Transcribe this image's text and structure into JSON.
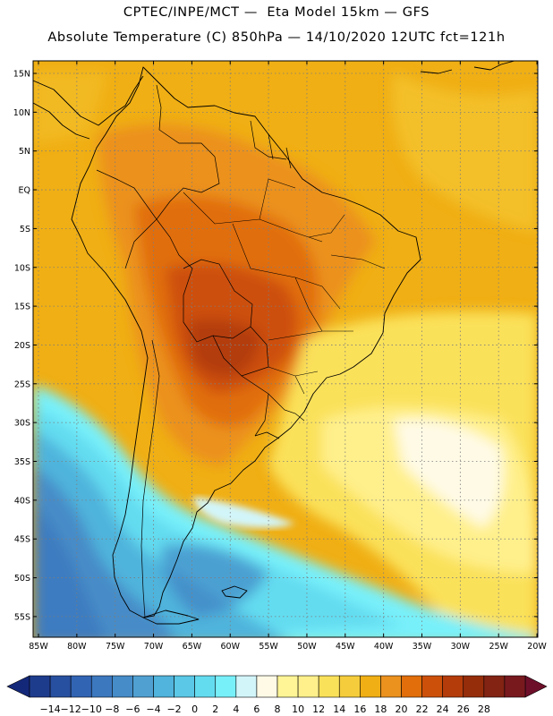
{
  "header": {
    "line1": "CPTEC/INPE/MCT —  Eta Model 15km — GFS",
    "line2": "Absolute Temperature (C) 850hPa — 14/10/2020 12UTC fct=121h"
  },
  "map": {
    "longitude_labels": [
      "85W",
      "80W",
      "75W",
      "70W",
      "65W",
      "60W",
      "55W",
      "50W",
      "45W",
      "40W",
      "35W",
      "30W",
      "25W",
      "20W"
    ],
    "latitude_labels": [
      "15N",
      "10N",
      "5N",
      "EQ",
      "5S",
      "10S",
      "15S",
      "20S",
      "25S",
      "30S",
      "35S",
      "40S",
      "45S",
      "50S",
      "55S"
    ]
  },
  "colorbar": {
    "labels": [
      "-14",
      "-12",
      "-10",
      "-8",
      "-6",
      "-4",
      "-2",
      "0",
      "2",
      "4",
      "6",
      "8",
      "10",
      "12",
      "14",
      "16",
      "18",
      "20",
      "22",
      "24",
      "26",
      "28"
    ],
    "colors": [
      "#1e3c8c",
      "#2850a0",
      "#3264b4",
      "#3c78be",
      "#468cc8",
      "#50a0d2",
      "#50b4dc",
      "#5ac8e6",
      "#64dcf0",
      "#78f0fa",
      "#d2f5fa",
      "#fffae6",
      "#fff596",
      "#fff08c",
      "#fae15a",
      "#f5cd3c",
      "#f0af14",
      "#eb911e",
      "#e16e0a",
      "#cd500a",
      "#b43c0a",
      "#962d0a",
      "#822314",
      "#78191e"
    ],
    "left_arrow_color": "#14287a",
    "right_arrow_color": "#6e0f2a"
  }
}
